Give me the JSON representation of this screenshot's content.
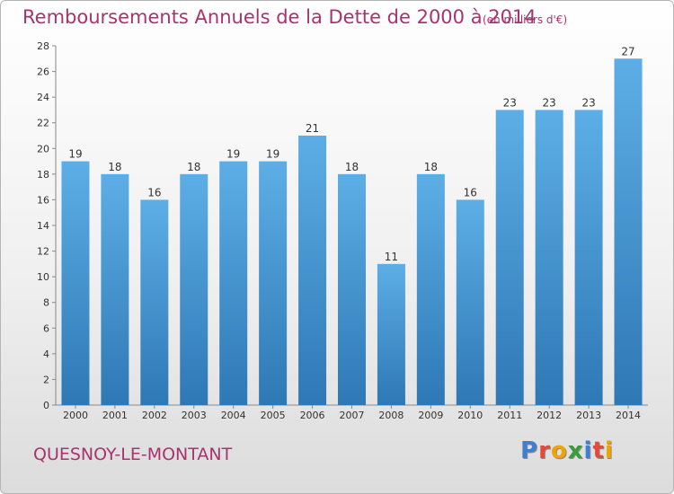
{
  "chart_data": {
    "type": "bar",
    "title": "Remboursements Annuels de la Dette de 2000 à 2014",
    "subtitle": "(en milliers d'€)",
    "categories": [
      "2000",
      "2001",
      "2002",
      "2003",
      "2004",
      "2005",
      "2006",
      "2007",
      "2008",
      "2009",
      "2010",
      "2011",
      "2012",
      "2013",
      "2014"
    ],
    "values": [
      19,
      18,
      16,
      18,
      19,
      19,
      21,
      18,
      11,
      18,
      16,
      23,
      23,
      23,
      27
    ],
    "xlabel": "",
    "ylabel": "",
    "ylim": [
      0,
      28
    ],
    "yticks": [
      0,
      2,
      4,
      6,
      8,
      10,
      12,
      14,
      16,
      18,
      20,
      22,
      24,
      26,
      28
    ],
    "grid": false,
    "data_labels": true,
    "colors": {
      "bar_top": "#5daee6",
      "bar_bottom": "#2e78b5",
      "title": "#a8336f"
    }
  },
  "footer": {
    "commune": "QUESNOY-LE-MONTANT",
    "logo_letters": [
      {
        "char": "P",
        "color": "#3f7fd1"
      },
      {
        "char": "r",
        "color": "#e24b3a"
      },
      {
        "char": "o",
        "color": "#f0a400"
      },
      {
        "char": "x",
        "color": "#3a9b3a"
      },
      {
        "char": "i",
        "color": "#3f7fd1"
      },
      {
        "char": "t",
        "color": "#e24b3a"
      },
      {
        "char": "i",
        "color": "#f0a400"
      }
    ]
  }
}
